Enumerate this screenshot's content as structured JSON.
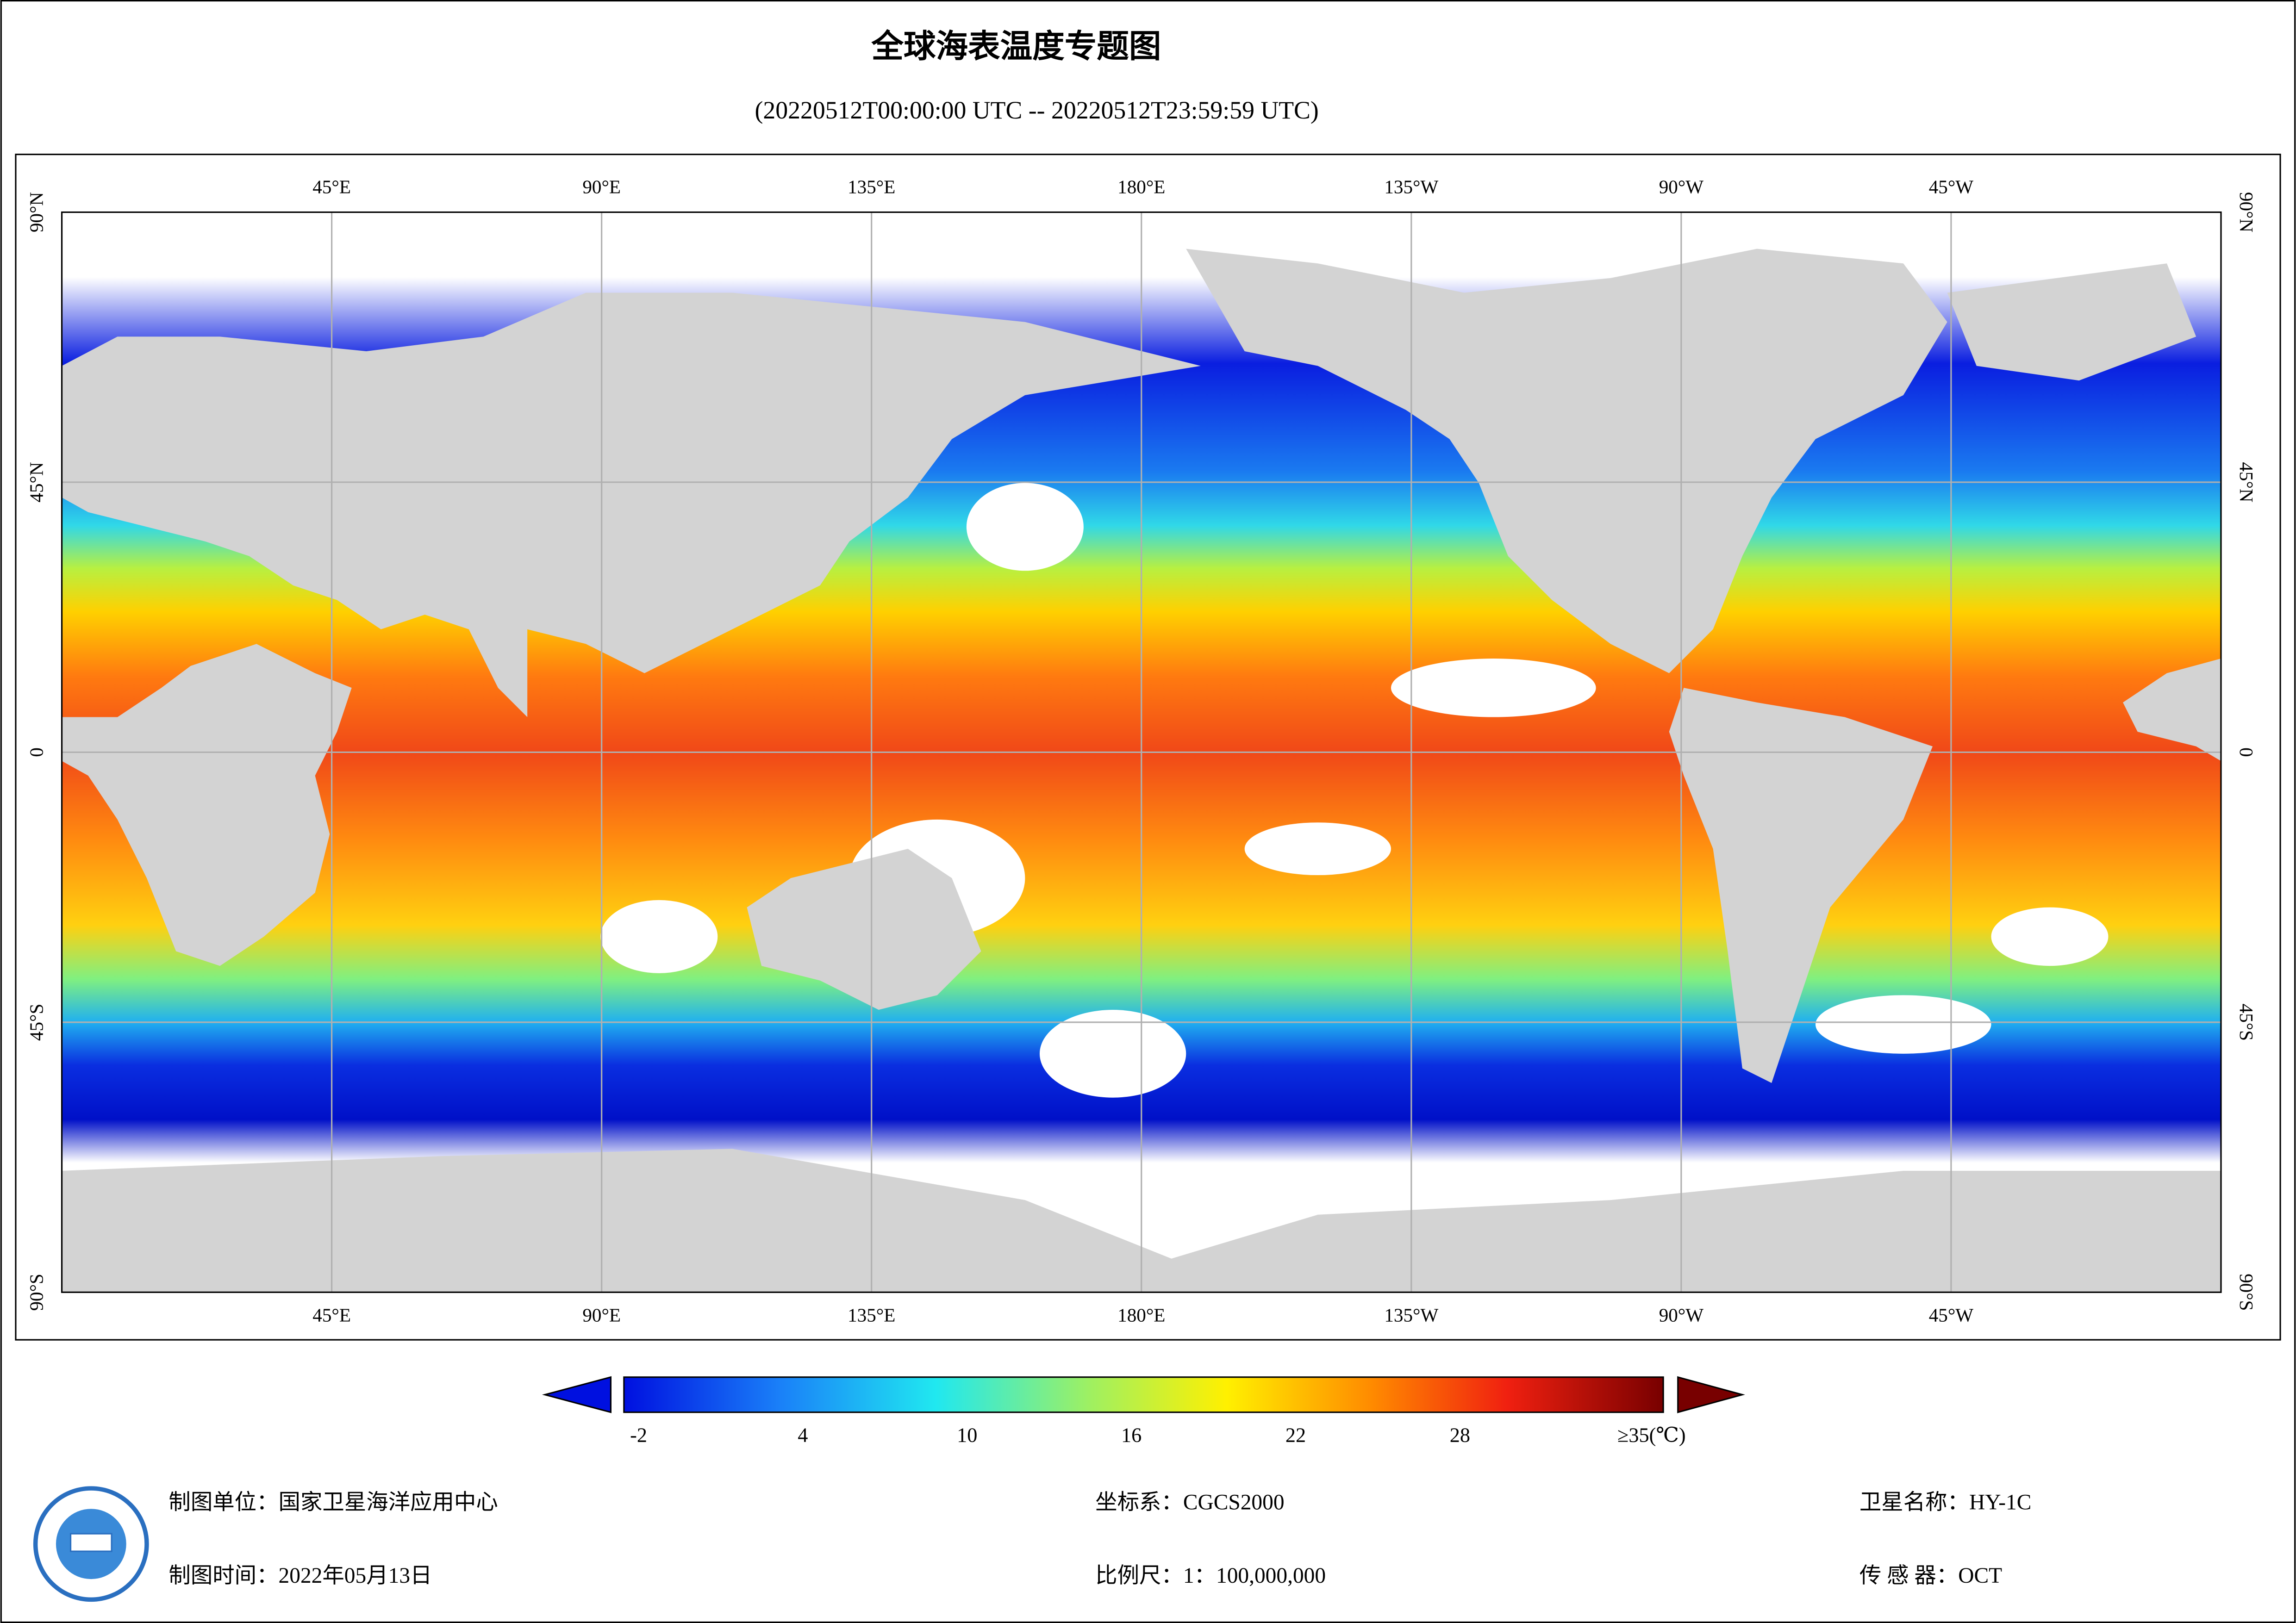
{
  "header": {
    "title": "全球海表温度专题图",
    "subtitle": "(20220512T00:00:00 UTC -- 20220512T23:59:59 UTC)"
  },
  "map": {
    "lon_labels": [
      "45°E",
      "90°E",
      "135°E",
      "180°E",
      "135°W",
      "90°W",
      "45°W"
    ],
    "lat_labels": [
      "90°N",
      "45°N",
      "0",
      "45°S",
      "90°S"
    ]
  },
  "colorbar": {
    "ticks": [
      -2,
      4,
      10,
      16,
      22,
      28,
      {
        "value": 35,
        "label": "≥35(℃)"
      }
    ]
  },
  "footer": {
    "unit": "制图单位：国家卫星海洋应用中心",
    "date": "制图时间：2022年05月13日",
    "crs": "坐标系：CGCS2000",
    "scale": "比例尺：1：100,000,000",
    "satellite": "卫星名称：HY-1C",
    "sensor": "传 感 器：OCT"
  }
}
